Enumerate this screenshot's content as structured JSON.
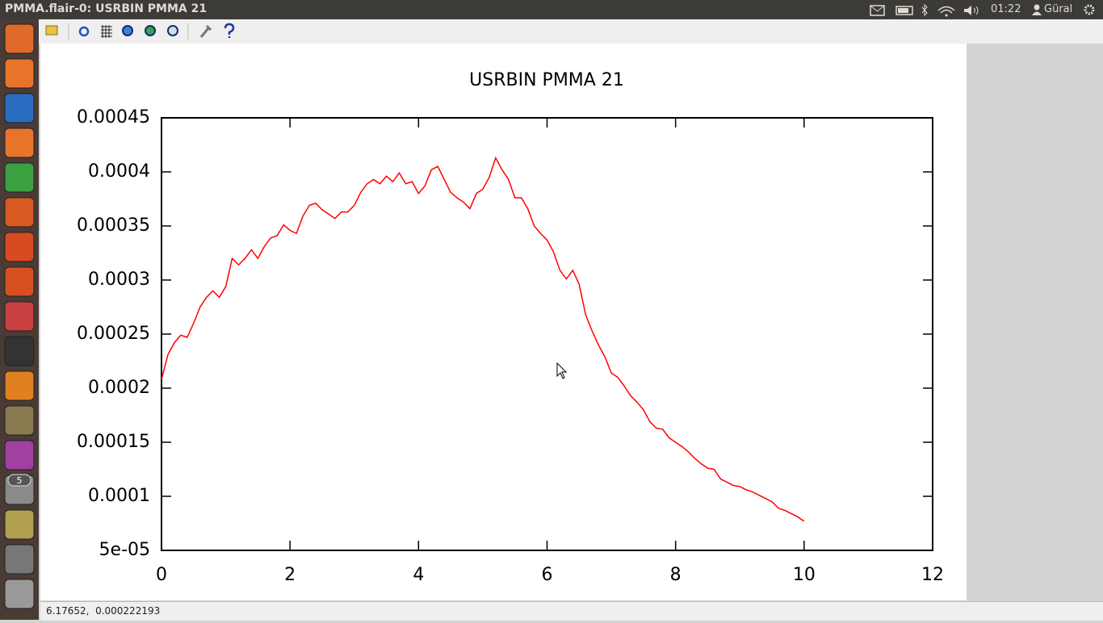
{
  "top_bar": {
    "title": "PMMA.flair-0: USRBIN PMMA 21",
    "clock": "01:22",
    "user": "Güral"
  },
  "launcher": {
    "badge": "5"
  },
  "status_bar": {
    "text": "6.17652,  0.000222193"
  },
  "chart_data": {
    "type": "line",
    "title": "USRBIN PMMA 21",
    "x": [
      0,
      0.1,
      0.2,
      0.3,
      0.4,
      0.5,
      0.6,
      0.7,
      0.8,
      0.9,
      1,
      1.1,
      1.2,
      1.3,
      1.4,
      1.5,
      1.6,
      1.7,
      1.8,
      1.9,
      2,
      2.1,
      2.2,
      2.3,
      2.4,
      2.5,
      2.6,
      2.7,
      2.8,
      2.9,
      3,
      3.1,
      3.2,
      3.3,
      3.4,
      3.5,
      3.6,
      3.7,
      3.8,
      3.9,
      4,
      4.1,
      4.2,
      4.3,
      4.4,
      4.5,
      4.6,
      4.7,
      4.8,
      4.9,
      5,
      5.1,
      5.2,
      5.3,
      5.4,
      5.5,
      5.6,
      5.7,
      5.8,
      5.9,
      6,
      6.1,
      6.2,
      6.3,
      6.4,
      6.5,
      6.6,
      6.7,
      6.8,
      6.9,
      7,
      7.1,
      7.2,
      7.3,
      7.4,
      7.5,
      7.6,
      7.7,
      7.8,
      7.9,
      8,
      8.1,
      8.2,
      8.3,
      8.4,
      8.5,
      8.6,
      8.7,
      8.8,
      8.9,
      9,
      9.1,
      9.2,
      9.3,
      9.4,
      9.5,
      9.6,
      9.7,
      9.8,
      9.9,
      10
    ],
    "series": [
      {
        "color": "#ff0000",
        "values": [
          0.000208,
          0.000231,
          0.000242,
          0.000249,
          0.000247,
          0.00026,
          0.000275,
          0.000284,
          0.00029,
          0.000284,
          0.000294,
          0.00032,
          0.000314,
          0.00032,
          0.000328,
          0.00032,
          0.000331,
          0.000339,
          0.000341,
          0.000351,
          0.000346,
          0.000343,
          0.000359,
          0.000369,
          0.000371,
          0.000365,
          0.000361,
          0.000357,
          0.000363,
          0.000363,
          0.000369,
          0.000381,
          0.000389,
          0.000393,
          0.000389,
          0.000396,
          0.000391,
          0.000399,
          0.000389,
          0.000391,
          0.00038,
          0.000387,
          0.000402,
          0.000405,
          0.000393,
          0.000381,
          0.000376,
          0.000372,
          0.000366,
          0.00038,
          0.000384,
          0.000395,
          0.000413,
          0.000402,
          0.000393,
          0.000376,
          0.000376,
          0.000366,
          0.00035,
          0.000343,
          0.000337,
          0.000326,
          0.000309,
          0.000301,
          0.000309,
          0.000296,
          0.000268,
          0.000253,
          0.00024,
          0.000229,
          0.000214,
          0.00021,
          0.000202,
          0.000193,
          0.000187,
          0.00018,
          0.000169,
          0.000163,
          0.000162,
          0.000154,
          0.00015,
          0.000146,
          0.000141,
          0.000135,
          0.00013,
          0.000126,
          0.000125,
          0.000116,
          0.000113,
          0.00011,
          0.000109,
          0.000106,
          0.000104,
          0.000101,
          9.8e-05,
          9.5e-05,
          8.9e-05,
          8.7e-05,
          8.4e-05,
          8.1e-05,
          7.7e-05
        ]
      }
    ],
    "xlim": [
      0,
      12
    ],
    "xticks": [
      0,
      2,
      4,
      6,
      8,
      10,
      12
    ],
    "ylim": [
      5e-05,
      0.00045
    ],
    "yticks": [
      {
        "value": 5e-05,
        "label": "5e-05"
      },
      0.0001,
      0.00015,
      0.0002,
      0.00025,
      0.0003,
      0.00035,
      0.0004,
      0.00045
    ]
  }
}
